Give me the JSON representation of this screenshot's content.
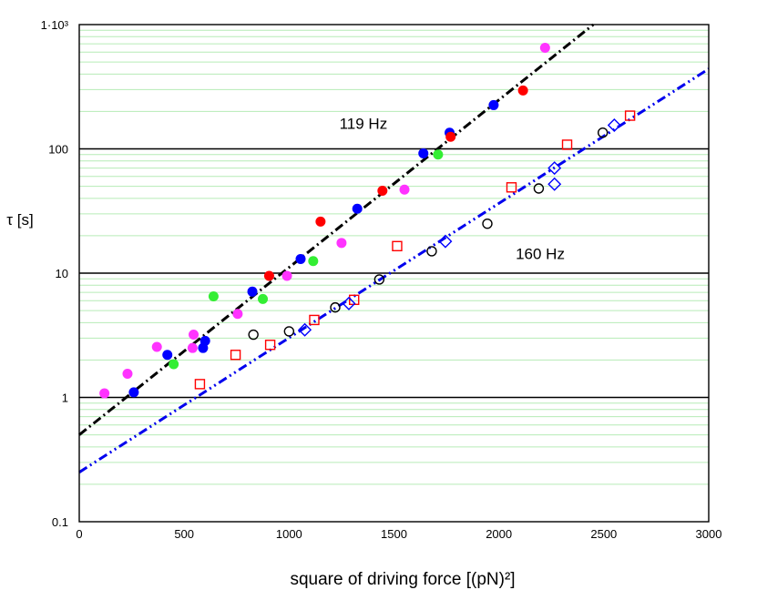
{
  "chart_data": {
    "type": "scatter",
    "title": "",
    "xlabel": "square of driving force [(pN)²]",
    "ylabel": "τ [s]",
    "xlim": [
      0,
      3000
    ],
    "ylim": [
      0.1,
      1000
    ],
    "yscale": "log",
    "grid": "major horizontal lines at decades, light green minor lines",
    "x_ticks": [
      0,
      500,
      1000,
      1500,
      2000,
      2500,
      3000
    ],
    "x_tick_labels": [
      "0",
      "500",
      "1000",
      "1500",
      "2000",
      "2500",
      "3000"
    ],
    "y_ticks": [
      0.1,
      1,
      10,
      100,
      1000
    ],
    "y_tick_labels": [
      "0.1",
      "1",
      "10",
      "100",
      "1·10³"
    ],
    "annotations": [
      {
        "text": "119 Hz",
        "x": 1240,
        "y": 145
      },
      {
        "text": "160 Hz",
        "x": 2080,
        "y": 13
      }
    ],
    "colors": {
      "black": "#000000",
      "blue": "#0000ff",
      "red": "#ff0000",
      "magenta": "#ff33ff",
      "green": "#33ee33",
      "minor_grid": "#b6ecb6",
      "major_grid": "#000000",
      "fit_119": "#000000",
      "fit_160": "#0000ee"
    },
    "fit_lines": [
      {
        "style": "dash-dot",
        "color": "#000000",
        "from": [
          0,
          0.5
        ],
        "to": [
          2450,
          1000
        ]
      },
      {
        "style": "dash-dot-dot",
        "color": "#0000ee",
        "from": [
          0,
          0.25
        ],
        "to": [
          3000,
          440
        ]
      }
    ],
    "series": [
      {
        "marker": "filled-circle",
        "color": "#ff33ff",
        "points": [
          [
            120,
            1.08
          ],
          [
            230,
            1.55
          ],
          [
            370,
            2.55
          ],
          [
            540,
            2.5
          ],
          [
            545,
            3.2
          ],
          [
            755,
            4.7
          ],
          [
            990,
            9.5
          ],
          [
            1250,
            17.5
          ],
          [
            1550,
            47
          ],
          [
            2220,
            650
          ]
        ]
      },
      {
        "marker": "filled-circle",
        "color": "#0000ff",
        "points": [
          [
            260,
            1.1
          ],
          [
            420,
            2.2
          ],
          [
            590,
            2.5
          ],
          [
            600,
            2.85
          ],
          [
            825,
            7.1
          ],
          [
            1055,
            13
          ],
          [
            1325,
            33
          ],
          [
            1640,
            92
          ],
          [
            1765,
            135
          ],
          [
            1975,
            225
          ]
        ]
      },
      {
        "marker": "filled-circle",
        "color": "#ff0000",
        "points": [
          [
            905,
            9.5
          ],
          [
            1150,
            26
          ],
          [
            1445,
            46
          ],
          [
            1770,
            125
          ],
          [
            2115,
            295
          ]
        ]
      },
      {
        "marker": "filled-circle",
        "color": "#33ee33",
        "points": [
          [
            450,
            1.85
          ],
          [
            640,
            6.5
          ],
          [
            875,
            6.2
          ],
          [
            1115,
            12.5
          ],
          [
            1710,
            90
          ]
        ]
      },
      {
        "marker": "open-circle",
        "color": "#000000",
        "points": [
          [
            830,
            3.2
          ],
          [
            1000,
            3.4
          ],
          [
            1220,
            5.3
          ],
          [
            1430,
            8.9
          ],
          [
            1680,
            15
          ],
          [
            1945,
            25
          ],
          [
            2190,
            48
          ],
          [
            2495,
            135
          ]
        ]
      },
      {
        "marker": "open-square",
        "color": "#ff0000",
        "points": [
          [
            575,
            1.28
          ],
          [
            745,
            2.2
          ],
          [
            910,
            2.65
          ],
          [
            1120,
            4.2
          ],
          [
            1310,
            6.1
          ],
          [
            1515,
            16.5
          ],
          [
            2060,
            49
          ],
          [
            2325,
            108
          ],
          [
            2625,
            185
          ]
        ]
      },
      {
        "marker": "open-diamond",
        "color": "#0000ff",
        "points": [
          [
            1075,
            3.5
          ],
          [
            1285,
            5.7
          ],
          [
            1745,
            18
          ],
          [
            2265,
            70
          ],
          [
            2265,
            52
          ],
          [
            2550,
            155
          ]
        ]
      }
    ]
  }
}
